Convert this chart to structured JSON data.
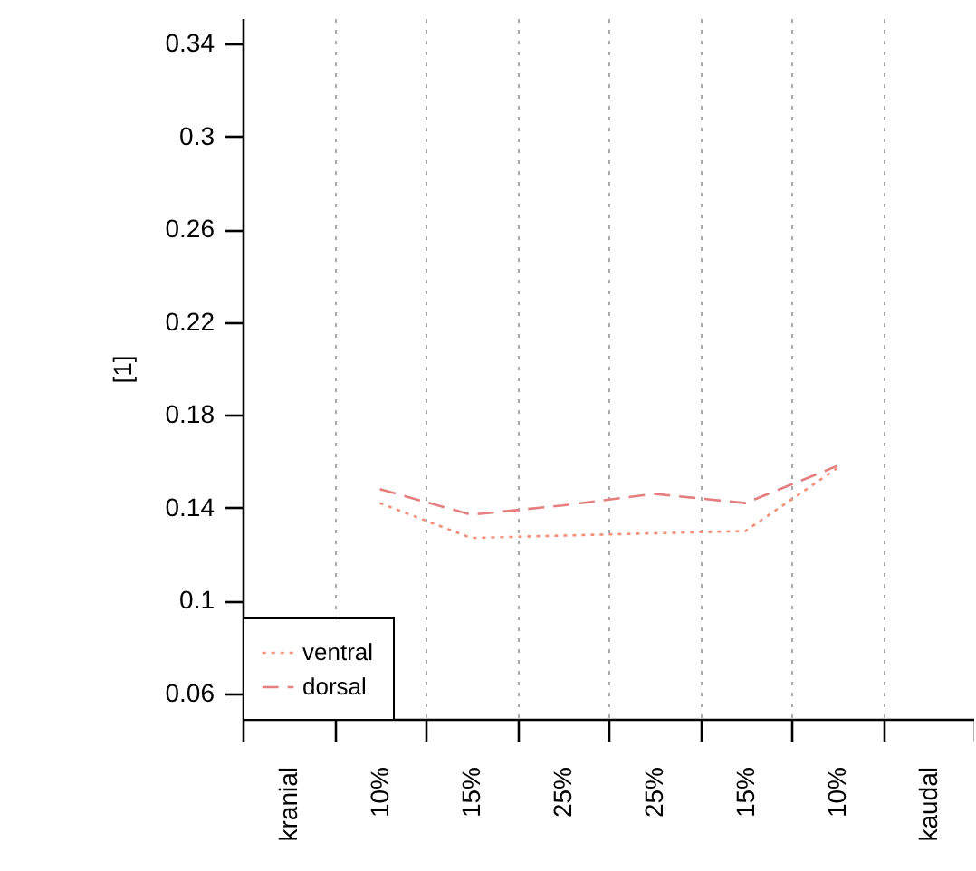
{
  "chart_data": {
    "type": "line",
    "ylabel": "[1]",
    "categories": [
      "kranial",
      "10%",
      "15%",
      "25%",
      "25%",
      "15%",
      "10%",
      "kaudal"
    ],
    "ylim": [
      0.049,
      0.351
    ],
    "yticks": [
      0.06,
      0.1,
      0.14,
      0.18,
      0.22,
      0.26,
      0.3,
      0.34
    ],
    "grid": "x",
    "legend": "bottom left",
    "marker": "none",
    "series": [
      {
        "name": "ventral",
        "color": "#f4907a",
        "line_style": "dotted",
        "values": [
          null,
          0.142,
          0.127,
          0.128,
          0.129,
          0.13,
          0.157,
          null
        ]
      },
      {
        "name": "dorsal",
        "color": "#e57f7f",
        "line_style": "dashed",
        "values": [
          null,
          0.148,
          0.137,
          0.141,
          0.146,
          0.142,
          0.158,
          null
        ]
      }
    ]
  }
}
